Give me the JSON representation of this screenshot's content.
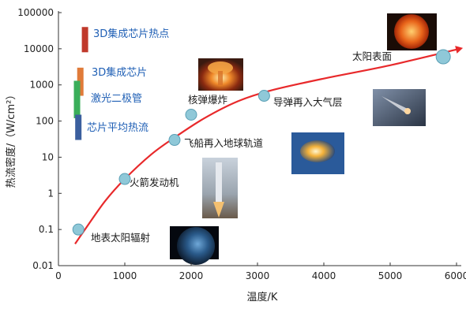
{
  "chart_data": {
    "type": "scatter",
    "xlabel": "温度/K",
    "ylabel": "热流密度/（W/cm²）",
    "xlim": [
      0,
      6000
    ],
    "ylim": [
      0.01,
      100000
    ],
    "y_scale": "log",
    "x_ticks": [
      "0",
      "1000",
      "2000",
      "3000",
      "4000",
      "5000",
      "6000"
    ],
    "y_ticks": [
      "0.01",
      "0.1",
      "1",
      "10",
      "100",
      "1000",
      "10000",
      "100000"
    ],
    "grid": false,
    "points": [
      {
        "label": "地表太阳辐射",
        "x": 300,
        "y": 0.1
      },
      {
        "label": "火箭发动机",
        "x": 1000,
        "y": 2.5
      },
      {
        "label": "飞船再入地球轨道",
        "x": 1750,
        "y": 30
      },
      {
        "label": "核弹爆炸",
        "x": 2000,
        "y": 150
      },
      {
        "label": "导弹再入大气层",
        "x": 3100,
        "y": 500
      },
      {
        "label": "太阳表面",
        "x": 5800,
        "y": 6000
      }
    ],
    "trend_curve": [
      [
        250,
        0.04
      ],
      [
        400,
        0.1
      ],
      [
        700,
        0.6
      ],
      [
        1000,
        2.5
      ],
      [
        1400,
        12
      ],
      [
        1750,
        35
      ],
      [
        2200,
        120
      ],
      [
        2700,
        350
      ],
      [
        3200,
        700
      ],
      [
        4000,
        1500
      ],
      [
        5000,
        3500
      ],
      [
        6050,
        10000
      ]
    ],
    "chips": [
      {
        "label": "3D集成芯片热点",
        "x": 400,
        "y_low": 8000,
        "y_high": 40000,
        "color": "#c0392b"
      },
      {
        "label": "3D集成芯片",
        "x": 330,
        "y_low": 500,
        "y_high": 3000,
        "color": "#e07b39"
      },
      {
        "label": "激光二极管",
        "x": 280,
        "y_low": 120,
        "y_high": 1300,
        "color": "#3aae5a"
      },
      {
        "label": "芯片平均热流",
        "x": 300,
        "y_low": 30,
        "y_high": 150,
        "color": "#3b5f9e"
      }
    ],
    "colors": {
      "curve": "#e8292b",
      "point": "#8fc8d8",
      "point_edge": "#5a9fb5",
      "axis": "#333333"
    }
  }
}
